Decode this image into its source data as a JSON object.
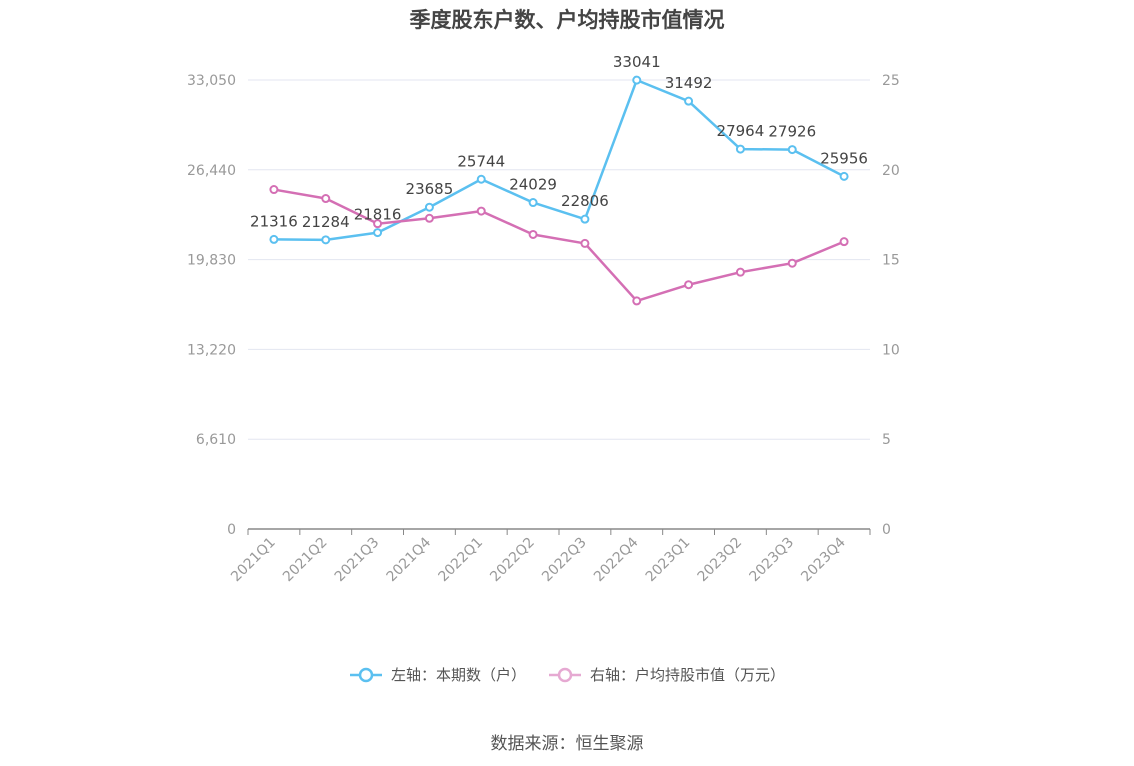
{
  "chart_data": {
    "type": "line",
    "title": "季度股东户数、户均持股市值情况",
    "categories": [
      "2021Q1",
      "2021Q2",
      "2021Q3",
      "2021Q4",
      "2022Q1",
      "2022Q2",
      "2022Q3",
      "2022Q4",
      "2023Q1",
      "2023Q2",
      "2023Q3",
      "2023Q4"
    ],
    "left_axis": {
      "ticks": [
        "0",
        "6,610",
        "13,220",
        "19,830",
        "26,440",
        "33,050"
      ],
      "ylim": [
        0,
        33050
      ]
    },
    "right_axis": {
      "ticks": [
        "0",
        "5",
        "10",
        "15",
        "20",
        "25"
      ],
      "ylim": [
        0,
        25
      ]
    },
    "series": [
      {
        "name": "左轴：本期数（户）",
        "axis": "left",
        "color": "#5bc0f0",
        "values": [
          21316,
          21284,
          21816,
          23685,
          25744,
          24029,
          22806,
          33041,
          31492,
          27964,
          27926,
          25956
        ],
        "labels": [
          "21316",
          "21284",
          "21816",
          "23685",
          "25744",
          "24029",
          "22806",
          "33041",
          "31492",
          "27964",
          "27926",
          "25956"
        ]
      },
      {
        "name": "右轴：户均持股市值（万元）",
        "axis": "right",
        "color": "#d46fb4",
        "values": [
          18.9,
          18.4,
          17.0,
          17.3,
          17.7,
          16.4,
          15.9,
          12.7,
          13.6,
          14.3,
          14.8,
          16.0
        ]
      }
    ],
    "grid": true,
    "legend_position": "bottom"
  },
  "source": "数据来源：恒生聚源"
}
